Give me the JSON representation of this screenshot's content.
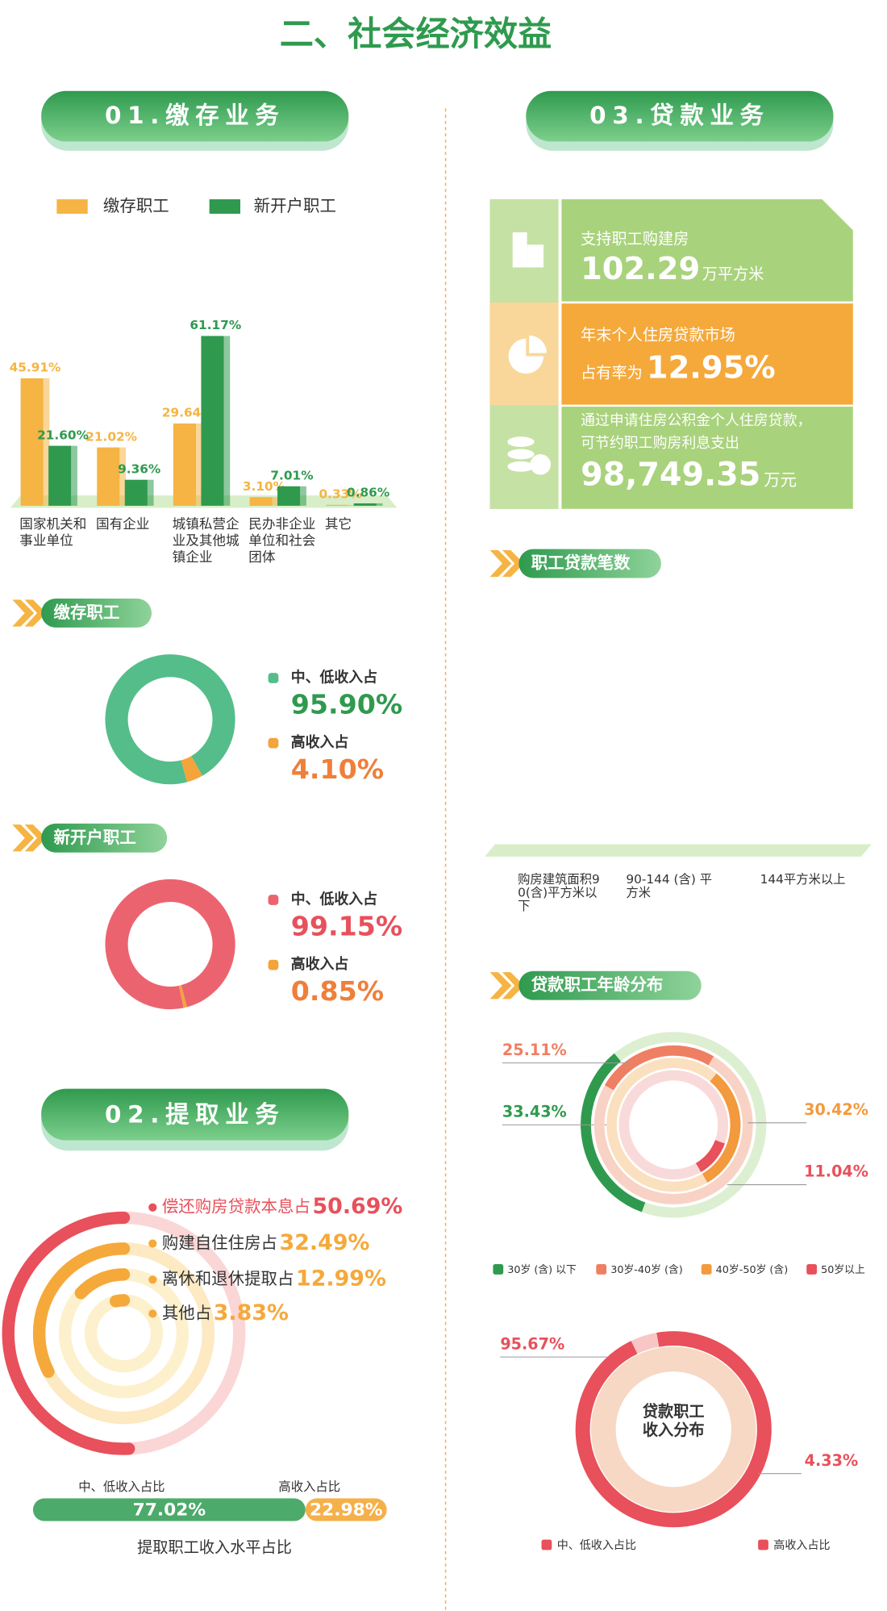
{
  "title": "二、社会经济效益",
  "sections": {
    "deposit": "01.缴存业务",
    "withdraw": "02.提取业务",
    "loan": "03.贷款业务"
  },
  "loan_cards": [
    {
      "label": "支持职工购建房",
      "value": "102.29",
      "unit": "万平方米"
    },
    {
      "label": "年末个人住房贷款市场",
      "label2": "占有率为",
      "value": "12.95%"
    },
    {
      "label": "通过申请住房公积金个人住房贷款，",
      "label2": "可节约职工购房利息支出",
      "value": "98,749.35",
      "unit": "万元"
    }
  ],
  "chart_data": [
    {
      "type": "bar",
      "categories": [
        "国家机关和事业单位",
        "国有企业",
        "城镇私营企业及其他城镇企业",
        "民办非企业单位和社会团体",
        "其它"
      ],
      "series": [
        {
          "name": "缴存职工",
          "color": "#f5b443",
          "values": [
            45.91,
            21.02,
            29.64,
            3.1,
            0.33
          ],
          "value_labels": [
            "45.91%",
            "21.02%",
            "29.64%",
            "3.10%",
            "0.33%"
          ]
        },
        {
          "name": "新开户职工",
          "color": "#2f9a4e",
          "values": [
            21.6,
            9.36,
            61.17,
            7.01,
            0.86
          ],
          "value_labels": [
            "21.60%",
            "9.36%",
            "61.17%",
            "7.01%",
            "0.86%"
          ]
        }
      ],
      "ylim": [
        0,
        100
      ]
    },
    {
      "type": "pie",
      "title": "缴存职工",
      "categories": [
        "中、低收入占",
        "高收入占"
      ],
      "values": [
        95.9,
        4.1
      ],
      "value_labels": [
        "95.90%",
        "4.10%"
      ],
      "colors": [
        "#55bd8a",
        "#f3a43a"
      ],
      "label_colors": [
        "#2f9a4e",
        "#ef7f3a"
      ]
    },
    {
      "type": "pie",
      "title": "新开户职工",
      "categories": [
        "中、低收入占",
        "高收入占"
      ],
      "values": [
        99.15,
        0.85
      ],
      "value_labels": [
        "99.15%",
        "0.85%"
      ],
      "colors": [
        "#ec6370",
        "#f3a43a"
      ],
      "label_colors": [
        "#e8505b",
        "#ef7f3a"
      ]
    },
    {
      "type": "radial-bar",
      "categories": [
        "偿还购房贷款本息占",
        "购建自住住房占",
        "离休和退休提取占",
        "其他占"
      ],
      "values": [
        50.69,
        32.49,
        12.99,
        3.83
      ],
      "value_labels": [
        "50.69%",
        "32.49%",
        "12.99%",
        "3.83%"
      ],
      "colors": [
        "#e8505b",
        "#f5a93b",
        "#f5a93b",
        "#f5a93b"
      ]
    },
    {
      "type": "stacked-bar",
      "title": "提取职工收入水平占比",
      "categories": [
        "中、低收入占比",
        "高收入占比"
      ],
      "values": [
        77.02,
        22.98
      ],
      "value_labels": [
        "77.02%",
        "22.98%"
      ],
      "colors": [
        "#4caa6a",
        "#f5b04a"
      ]
    },
    {
      "type": "bar",
      "title": "职工贷款笔数",
      "categories": [
        "购房建筑面积90(含)平方米以下",
        "90-144 (含) 平方米",
        "144平方米以上"
      ]
    },
    {
      "type": "rings",
      "title": "贷款职工年龄分布",
      "categories": [
        "30岁 (含) 以下",
        "30岁-40岁 (含)",
        "40岁-50岁 (含)",
        "50岁以上"
      ],
      "values": [
        33.43,
        25.11,
        30.42,
        11.04
      ],
      "value_labels": [
        "33.43%",
        "25.11%",
        "30.42%",
        "11.04%"
      ],
      "colors": [
        "#2f9a4e",
        "#ef7f63",
        "#f29a3d",
        "#e8505b"
      ]
    },
    {
      "type": "pie",
      "title": "贷款职工收入分布",
      "categories": [
        "中、低收入占比",
        "高收入占比"
      ],
      "values": [
        95.67,
        4.33
      ],
      "value_labels": [
        "95.67%",
        "4.33%"
      ],
      "colors": [
        "#e8505b",
        "#f9c6c6"
      ]
    }
  ]
}
